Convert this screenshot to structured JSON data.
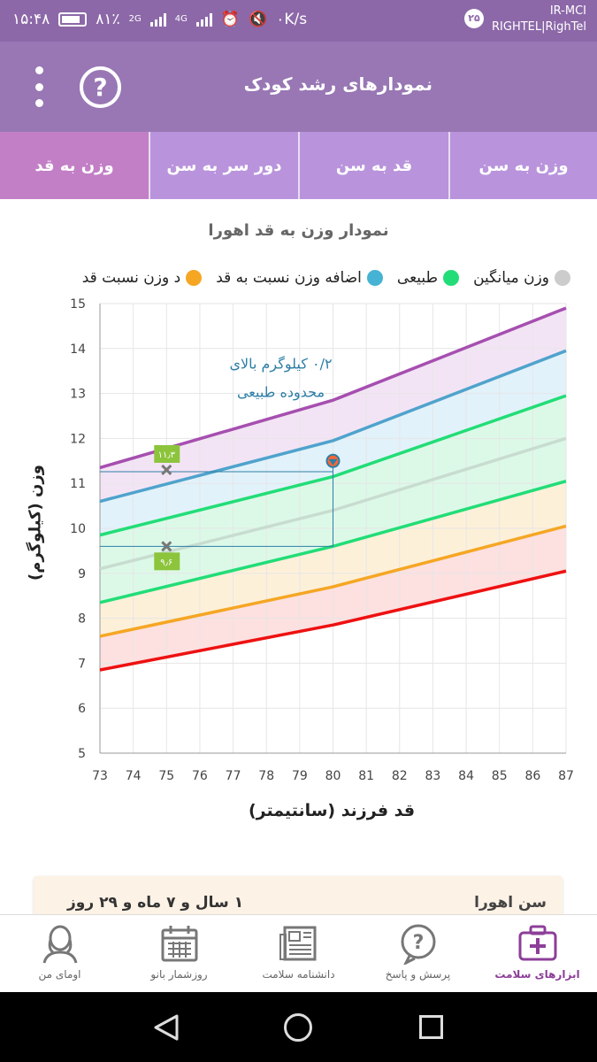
{
  "status_bar": {
    "time": "۱۵:۴۸",
    "battery": "۸۱٪",
    "net_2g": "2G",
    "net_4g": "4G",
    "speed": "۰K/s",
    "badge": "۲۵",
    "carrier_1": "IR-MCI",
    "carrier_2": "RIGHTEL|RighTel"
  },
  "app_bar": {
    "title": "نمودارهای رشد کودک",
    "help_icon": "question-circle-icon",
    "menu_icon": "more-vert-icon"
  },
  "tabs": [
    {
      "label": "وزن به سن",
      "active": false
    },
    {
      "label": "قد به سن",
      "active": false
    },
    {
      "label": "دور سر به سن",
      "active": false
    },
    {
      "label": "وزن به قد",
      "active": true
    }
  ],
  "chart_title": "نمودار وزن به قد اهورا",
  "legend": [
    {
      "label": "وزن میانگین",
      "color": "#cccccc"
    },
    {
      "label": "طبیعی",
      "color": "#22dd77"
    },
    {
      "label": "اضافه وزن نسبت به قد",
      "color": "#46b3d4"
    },
    {
      "label": "د وزن نسبت قد",
      "color": "#f5a623"
    }
  ],
  "chart_data": {
    "type": "area",
    "xlabel": "قد فرزند (سانتیمتر)",
    "ylabel": "وزن (کیلوگرم)",
    "xlim": [
      73,
      87
    ],
    "ylim": [
      5,
      15
    ],
    "x_ticks": [
      73,
      74,
      75,
      76,
      77,
      78,
      79,
      80,
      81,
      82,
      83,
      84,
      85,
      86,
      87
    ],
    "y_ticks": [
      5,
      6,
      7,
      8,
      9,
      10,
      11,
      12,
      13,
      14,
      15
    ],
    "grid": true,
    "curves": [
      {
        "color": "#a64fb0",
        "fill": "#f3e4f5",
        "x": [
          73,
          80,
          87
        ],
        "y": [
          11.35,
          12.85,
          14.9
        ]
      },
      {
        "color": "#4fa3cc",
        "fill": "#e2f2fa",
        "x": [
          73,
          80,
          87
        ],
        "y": [
          10.6,
          11.95,
          13.95
        ]
      },
      {
        "color": "#22dd77",
        "fill": "#dcf9e8",
        "x": [
          73,
          80,
          87
        ],
        "y": [
          9.85,
          11.15,
          12.95
        ]
      },
      {
        "color": "#c8dcd0",
        "fill": "#dcf9e8",
        "x": [
          73,
          80,
          87
        ],
        "y": [
          9.1,
          10.4,
          12.0
        ]
      },
      {
        "color": "#22dd77",
        "fill": "#fdf0d9",
        "x": [
          73,
          80,
          87
        ],
        "y": [
          8.35,
          9.6,
          11.05
        ]
      },
      {
        "color": "#f5a623",
        "fill": "#fde0e0",
        "x": [
          73,
          80,
          87
        ],
        "y": [
          7.6,
          8.7,
          10.05
        ]
      },
      {
        "color": "#ee1111",
        "fill": null,
        "x": [
          73,
          80,
          87
        ],
        "y": [
          6.85,
          7.85,
          9.05
        ]
      }
    ],
    "child_point": {
      "x": 80,
      "y": 11.5
    },
    "markers": [
      {
        "x": 75,
        "y": 11.3,
        "label": "۱۱٫۳"
      },
      {
        "x": 75,
        "y": 9.6,
        "label": "۹٫۶"
      }
    ],
    "annotation": [
      "۰/۲ کیلوگرم بالای",
      "محدوده طبیعی"
    ]
  },
  "info_card": {
    "label": "سن اهورا",
    "value": "۱ سال و ۷ ماه و ۲۹ روز"
  },
  "bottom_nav": [
    {
      "label": "ابزارهای سلامت",
      "icon": "health-kit-icon",
      "active": true
    },
    {
      "label": "پرسش و پاسخ",
      "icon": "question-bubble-icon",
      "active": false
    },
    {
      "label": "دانشنامه سلامت",
      "icon": "newspaper-icon",
      "active": false
    },
    {
      "label": "روزشمار بانو",
      "icon": "calendar-icon",
      "active": false
    },
    {
      "label": "اومای من",
      "icon": "woman-avatar-icon",
      "active": false
    }
  ]
}
